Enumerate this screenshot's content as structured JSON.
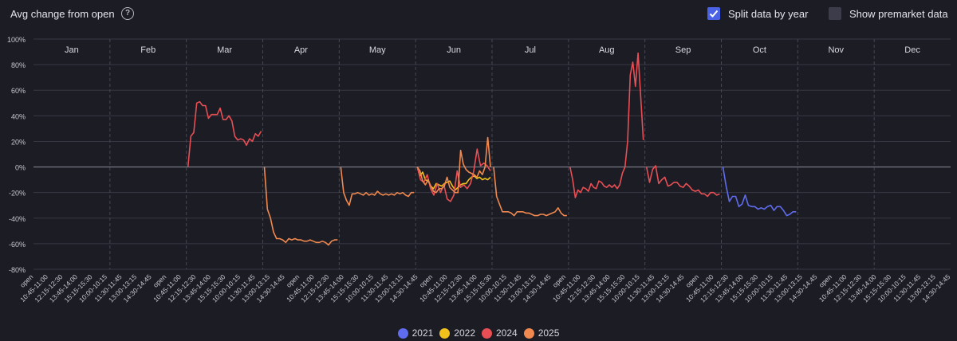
{
  "header": {
    "title": "Avg change from open",
    "help_icon": "question-circle-icon",
    "split_label": "Split data by year",
    "split_checked": true,
    "premarket_label": "Show premarket data",
    "premarket_checked": false
  },
  "colors": {
    "background": "#1c1c24",
    "grid": "#383844",
    "zero_line": "#70707c",
    "checkbox_on": "#4a63e6"
  },
  "chart_data": {
    "type": "line",
    "title": "",
    "xlabel": "",
    "ylabel": "",
    "ylim": [
      -80,
      100
    ],
    "y_ticks": [
      "100%",
      "80%",
      "60%",
      "40%",
      "20%",
      "0%",
      "-20%",
      "-40%",
      "-60%",
      "-80%"
    ],
    "grid": true,
    "legend_position": "bottom",
    "months": [
      "Jan",
      "Feb",
      "Mar",
      "Apr",
      "May",
      "Jun",
      "Jul",
      "Aug",
      "Sep",
      "Oct",
      "Nov",
      "Dec"
    ],
    "x_tick_labels": [
      "open",
      "10:45-11:00",
      "12:15-12:30",
      "13:45-14:00",
      "15:15-15:30",
      "10:00-10:15",
      "11:30-11:45",
      "13:00-13:15",
      "14:30-14:45",
      "open",
      "10:45-11:00",
      "12:15-12:30",
      "13:45-14:00",
      "15:15-15:30",
      "10:00-10:15",
      "11:30-11:45",
      "13:00-13:15",
      "14:30-14:45",
      "open",
      "10:45-11:00",
      "12:15-12:30",
      "13:45-14:00",
      "15:15-15:30",
      "10:00-10:15",
      "11:30-11:45",
      "13:00-13:15",
      "14:30-14:45",
      "open",
      "10:45-11:00",
      "12:15-12:30",
      "13:45-14:00",
      "15:15-15:30",
      "10:00-10:15",
      "11:30-11:45",
      "13:00-13:15",
      "14:30-14:45",
      "open",
      "10:45-11:00",
      "12:15-12:30",
      "13:45-14:00",
      "15:15-15:30",
      "10:00-10:15",
      "11:30-11:45",
      "13:00-13:15",
      "14:30-14:45",
      "open",
      "10:45-11:00",
      "12:15-12:30",
      "13:45-14:00",
      "15:15-15:30",
      "10:00-10:15",
      "11:30-11:45",
      "13:00-13:15",
      "14:30-14:45",
      "open",
      "10:45-11:00",
      "12:15-12:30",
      "13:45-14:00",
      "15:15-15:30",
      "10:00-10:15",
      "11:30-11:45",
      "13:00-13:15",
      "14:30-14:45"
    ],
    "series": [
      {
        "name": "2021",
        "color": "#5f6cf0",
        "segments": [
          {
            "month": 9,
            "values": [
              0,
              -15,
              -27,
              -23,
              -23,
              -31,
              -29,
              -22,
              -30,
              -31,
              -31,
              -33,
              -32,
              -33,
              -31,
              -30,
              -34,
              -31,
              -31,
              -34,
              -38,
              -37,
              -35,
              -35
            ]
          }
        ]
      },
      {
        "name": "2022",
        "color": "#f1c21b",
        "segments": [
          {
            "month": 5,
            "values": [
              0,
              -7,
              -4,
              -10,
              -11,
              -15,
              -17,
              -13,
              -14,
              -15,
              -13,
              -12,
              -11,
              -15,
              -18,
              -16,
              -14,
              -13,
              -13,
              -10,
              -8,
              -7,
              -9,
              -8,
              -10,
              -9,
              -10,
              -8
            ]
          }
        ]
      },
      {
        "name": "2024",
        "color": "#e84f55",
        "segments": [
          {
            "month": 2,
            "values": [
              0,
              24,
              27,
              50,
              51,
              48,
              48,
              38,
              41,
              41,
              41,
              46,
              37,
              37,
              40,
              36,
              24,
              21,
              22,
              21,
              17,
              22,
              20,
              26,
              24,
              28
            ]
          },
          {
            "month": 5,
            "values": [
              0,
              -10,
              -12,
              -6,
              -17,
              -22,
              -13,
              -20,
              -14,
              -25,
              -27,
              -22,
              -3,
              -16,
              -14,
              -17,
              -13,
              -3,
              14,
              1,
              3,
              1,
              -3
            ]
          },
          {
            "month": 7,
            "values": [
              0,
              -10,
              -24,
              -18,
              -20,
              -16,
              -17,
              -19,
              -13,
              -16,
              -17,
              -11,
              -12,
              -15,
              -16,
              -14,
              -16,
              -14,
              -17,
              -14,
              -5,
              0,
              20,
              72,
              82,
              63,
              89,
              55,
              21
            ]
          },
          {
            "month": 8,
            "values": [
              0,
              -12,
              -2,
              1,
              -13,
              -10,
              -8,
              -15,
              -14,
              -12,
              -12,
              -15,
              -16,
              -13,
              -15,
              -18,
              -19,
              -18,
              -21,
              -21,
              -23,
              -20,
              -20,
              -22,
              -21
            ]
          }
        ]
      },
      {
        "name": "2025",
        "color": "#f0894f",
        "segments": [
          {
            "month": 3,
            "values": [
              0,
              -33,
              -40,
              -51,
              -56,
              -56,
              -57,
              -59,
              -56,
              -57,
              -56,
              -57,
              -57,
              -58,
              -58,
              -57,
              -58,
              -59,
              -59,
              -58,
              -59,
              -61,
              -58,
              -57,
              -57
            ]
          },
          {
            "month": 4,
            "values": [
              0,
              -20,
              -26,
              -30,
              -21,
              -21,
              -20,
              -21,
              -22,
              -20,
              -22,
              -21,
              -22,
              -19,
              -21,
              -22,
              -21,
              -22,
              -21,
              -22,
              -20,
              -21,
              -20,
              -22,
              -23,
              -20,
              -20
            ]
          },
          {
            "month": 5,
            "values": [
              0,
              -3,
              -11,
              -14,
              -10,
              -15,
              -19,
              -20,
              -17,
              -17,
              -15,
              -8,
              -16,
              -18,
              -20,
              -20,
              13,
              2,
              -2,
              -4,
              -5,
              -6,
              -8,
              -3,
              -6,
              0,
              23,
              0
            ]
          },
          {
            "month": 6,
            "values": [
              0,
              -23,
              -29,
              -35,
              -35,
              -35,
              -36,
              -38,
              -35,
              -35,
              -35,
              -36,
              -36,
              -37,
              -38,
              -38,
              -37,
              -37,
              -38,
              -37,
              -36,
              -35,
              -32,
              -36,
              -38,
              -38
            ]
          }
        ]
      }
    ]
  },
  "legend": [
    {
      "label": "2021",
      "color": "#5f6cf0"
    },
    {
      "label": "2022",
      "color": "#f1c21b"
    },
    {
      "label": "2024",
      "color": "#e84f55"
    },
    {
      "label": "2025",
      "color": "#f0894f"
    }
  ]
}
